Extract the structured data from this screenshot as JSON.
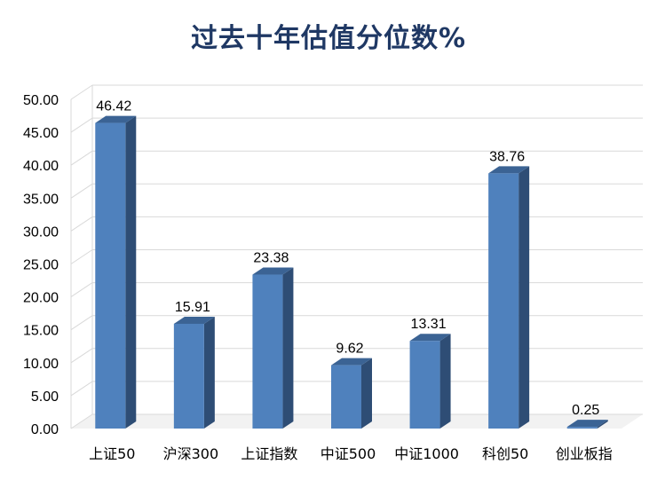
{
  "chart_data": {
    "type": "bar",
    "title": "过去十年估值分位数%",
    "categories": [
      "上证50",
      "沪深300",
      "上证指数",
      "中证500",
      "中证1000",
      "科创50",
      "创业板指"
    ],
    "values": [
      46.42,
      15.91,
      23.38,
      9.62,
      13.31,
      38.76,
      0.25
    ],
    "data_labels": [
      "46.42",
      "15.91",
      "23.38",
      "9.62",
      "13.31",
      "38.76",
      "0.25"
    ],
    "ylim": [
      0,
      50
    ],
    "yticks": [
      "0.00",
      "5.00",
      "10.00",
      "15.00",
      "20.00",
      "25.00",
      "30.00",
      "35.00",
      "40.00",
      "45.00",
      "50.00"
    ],
    "grid": true,
    "style": "3d-column",
    "colors": {
      "front": "#4F81BD",
      "side": "#2E4D75",
      "top": "#3B6394",
      "grid": "#D9D9D9",
      "title": "#1F3864"
    }
  }
}
